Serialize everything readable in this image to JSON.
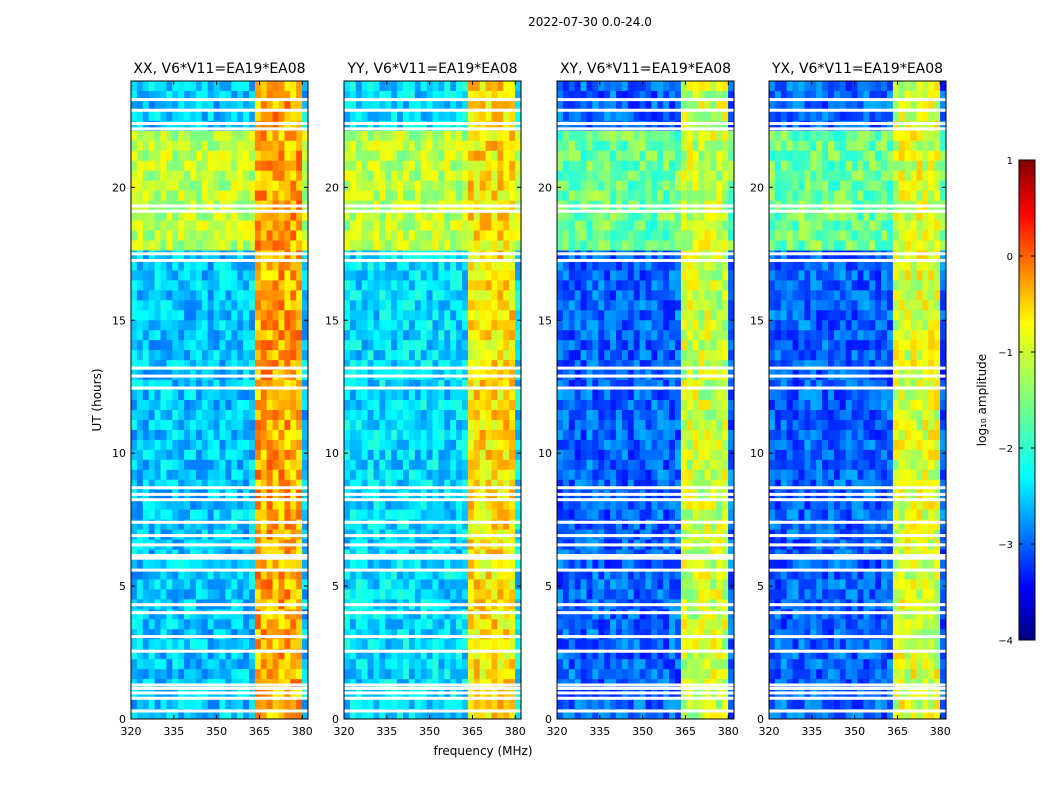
{
  "figure": {
    "suptitle": "2022-07-30 0.0-24.0"
  },
  "chart_data": {
    "type": "heatmap",
    "xlabel": "frequency (MHz)",
    "ylabel": "UT (hours)",
    "xlim": [
      320,
      382
    ],
    "ylim": [
      0,
      24
    ],
    "xticks": [
      320,
      335,
      350,
      365,
      380
    ],
    "yticks": [
      0,
      5,
      10,
      15,
      20
    ],
    "panels": [
      {
        "title": "XX, V6*V11=EA19*EA08",
        "base_low": -2.4,
        "base_high": -1.2,
        "band_high": 0.0
      },
      {
        "title": "YY, V6*V11=EA19*EA08",
        "base_low": -2.3,
        "base_high": -1.2,
        "band_high": -0.3
      },
      {
        "title": "XY, V6*V11=EA19*EA08",
        "base_low": -2.9,
        "base_high": -1.6,
        "band_high": -0.7
      },
      {
        "title": "YX, V6*V11=EA19*EA08",
        "base_low": -2.9,
        "base_high": -1.6,
        "band_high": -0.6
      }
    ],
    "rfi_band_mhz": [
      363.5,
      380.5
    ],
    "high_baseline_ut": [
      17.5,
      22.3
    ],
    "flagged_ut": [
      0.3,
      0.78,
      0.98,
      1.15,
      1.28,
      2.55,
      3.1,
      4.0,
      4.3,
      5.6,
      6.05,
      6.15,
      6.55,
      6.9,
      7.4,
      8.25,
      8.45,
      8.7,
      12.45,
      12.9,
      13.2,
      17.25,
      17.5,
      19.1,
      19.3,
      22.2,
      22.4,
      22.9,
      23.3
    ],
    "colorbar": {
      "label": "log₁₀ amplitude",
      "range": [
        -4,
        1
      ],
      "ticks": [
        -4,
        -3,
        -2,
        -1,
        0,
        1
      ],
      "tick_labels": [
        "−4",
        "−3",
        "−2",
        "−1",
        "0",
        "1"
      ]
    }
  }
}
